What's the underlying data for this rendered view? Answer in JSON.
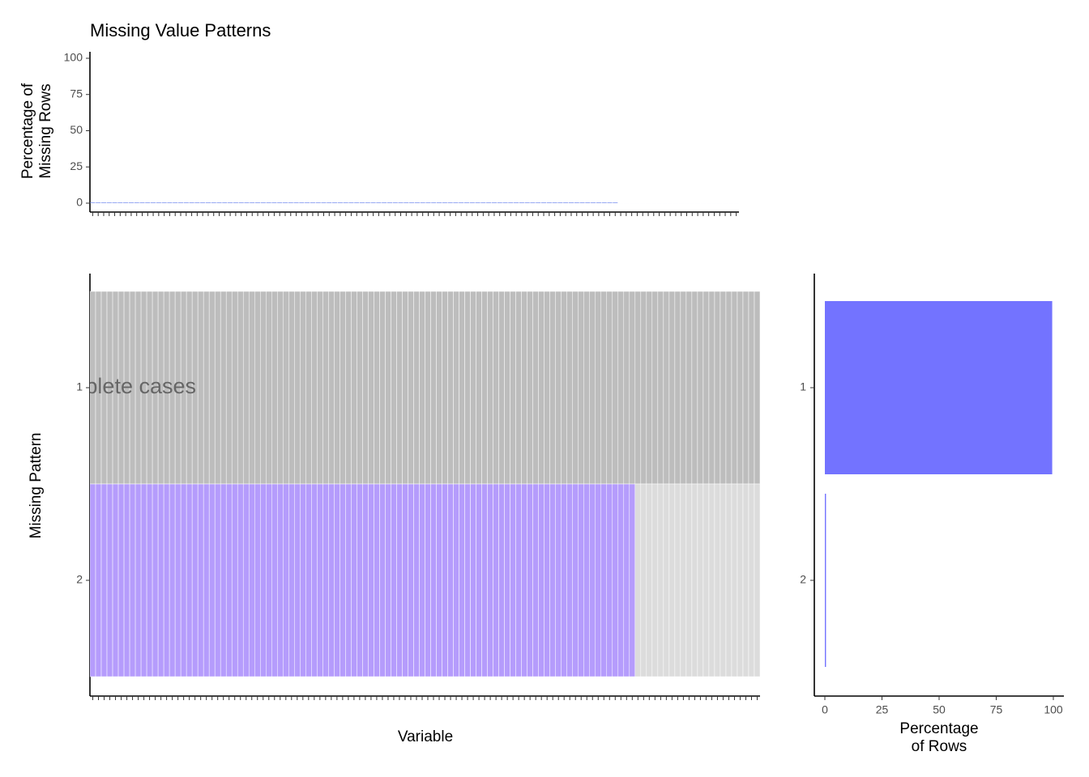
{
  "chart_data": [
    {
      "type": "bar",
      "title": "Missing Value Patterns",
      "y_label": [
        "Percentage of",
        "Missing Rows"
      ],
      "values": [
        0.5,
        0.5,
        0.5,
        0.5,
        0.5,
        0.5,
        0.5,
        0.5,
        0.5,
        0.5,
        0.5,
        0.5,
        0.5,
        0.5,
        0.5,
        0.5,
        0.5,
        0.5,
        0.5,
        0.5,
        0.5,
        0.5,
        0.5,
        0.5,
        0.5,
        0.5,
        0.5,
        0.5,
        0.5,
        0.5,
        0.5,
        0.5,
        0.5,
        0.5,
        0.5,
        0.5,
        0.5,
        0.5,
        0.5,
        0.5,
        0.5,
        0.5,
        0.5,
        0.5,
        0.5,
        0.5,
        0.5,
        0.5,
        0.5,
        0.5,
        0.5,
        0.5,
        0.5,
        0.5,
        0.5,
        0.5,
        0.5,
        0.5,
        0.5,
        0.5,
        0.5,
        0.5,
        0.5,
        0.5,
        0.5,
        0.5,
        0.5,
        0.5,
        0.5,
        0.5,
        0.5,
        0.5,
        0.5,
        0.5,
        0.5,
        0.5,
        0.5,
        0.5,
        0.5,
        0.5,
        0.5,
        0.5,
        0.5,
        0.5,
        0.5,
        0.5,
        0.5,
        0.5,
        0.5,
        0.5,
        0.5,
        0.5,
        0.5,
        0.5,
        0.5,
        0.5,
        0,
        0,
        0,
        0,
        0,
        0,
        0,
        0,
        0,
        0,
        0,
        0,
        0,
        0,
        0,
        0,
        0,
        0,
        0,
        0,
        0,
        0
      ],
      "color": "#8c9ff2",
      "ylim": [
        0,
        100
      ],
      "yticks": [
        0,
        25,
        50,
        75,
        100
      ]
    },
    {
      "type": "tile",
      "x_label": "Variable",
      "y_label": "Missing Pattern",
      "patterns": [
        1,
        2
      ],
      "annotation": "complete cases",
      "colors": {
        "complete": "#bdbdbd",
        "missing": "#b59cfc",
        "present": "#dcdcdc"
      },
      "rows": [
        [
          0,
          0,
          0,
          0,
          0,
          0,
          0,
          0,
          0,
          0,
          0,
          0,
          0,
          0,
          0,
          0,
          0,
          0,
          0,
          0,
          0,
          0,
          0,
          0,
          0,
          0,
          0,
          0,
          0,
          0,
          0,
          0,
          0,
          0,
          0,
          0,
          0,
          0,
          0,
          0,
          0,
          0,
          0,
          0,
          0,
          0,
          0,
          0,
          0,
          0,
          0,
          0,
          0,
          0,
          0,
          0,
          0,
          0,
          0,
          0,
          0,
          0,
          0,
          0,
          0,
          0,
          0,
          0,
          0,
          0,
          0,
          0,
          0,
          0,
          0,
          0,
          0,
          0,
          0,
          0,
          0,
          0,
          0,
          0,
          0,
          0,
          0,
          0,
          0,
          0,
          0,
          0,
          0,
          0,
          0,
          0,
          0,
          0,
          0,
          0,
          0,
          0,
          0,
          0,
          0,
          0,
          0,
          0,
          0,
          0,
          0,
          0,
          0,
          0,
          0,
          0,
          0,
          0
        ],
        [
          1,
          1,
          1,
          1,
          1,
          1,
          1,
          1,
          1,
          1,
          1,
          1,
          1,
          1,
          1,
          1,
          1,
          1,
          1,
          1,
          1,
          1,
          1,
          1,
          1,
          1,
          1,
          1,
          1,
          1,
          1,
          1,
          1,
          1,
          1,
          1,
          1,
          1,
          1,
          1,
          1,
          1,
          1,
          1,
          1,
          1,
          1,
          1,
          1,
          1,
          1,
          1,
          1,
          1,
          1,
          1,
          1,
          1,
          1,
          1,
          1,
          1,
          1,
          1,
          1,
          1,
          1,
          1,
          1,
          1,
          1,
          1,
          1,
          1,
          1,
          1,
          1,
          1,
          1,
          1,
          1,
          1,
          1,
          1,
          1,
          1,
          1,
          1,
          1,
          1,
          1,
          1,
          1,
          1,
          1,
          1,
          0,
          0,
          0,
          0,
          0,
          0,
          0,
          0,
          0,
          0,
          0,
          0,
          0,
          0,
          0,
          0,
          0,
          0,
          0,
          0,
          0,
          0
        ]
      ]
    },
    {
      "type": "hbar",
      "categories": [
        "1",
        "2"
      ],
      "values": [
        99.5,
        0.5
      ],
      "color": "#7373ff",
      "x_label": [
        "Percentage",
        "of Rows"
      ],
      "xlim": [
        0,
        100
      ],
      "xticks": [
        0,
        25,
        50,
        75,
        100
      ]
    }
  ]
}
